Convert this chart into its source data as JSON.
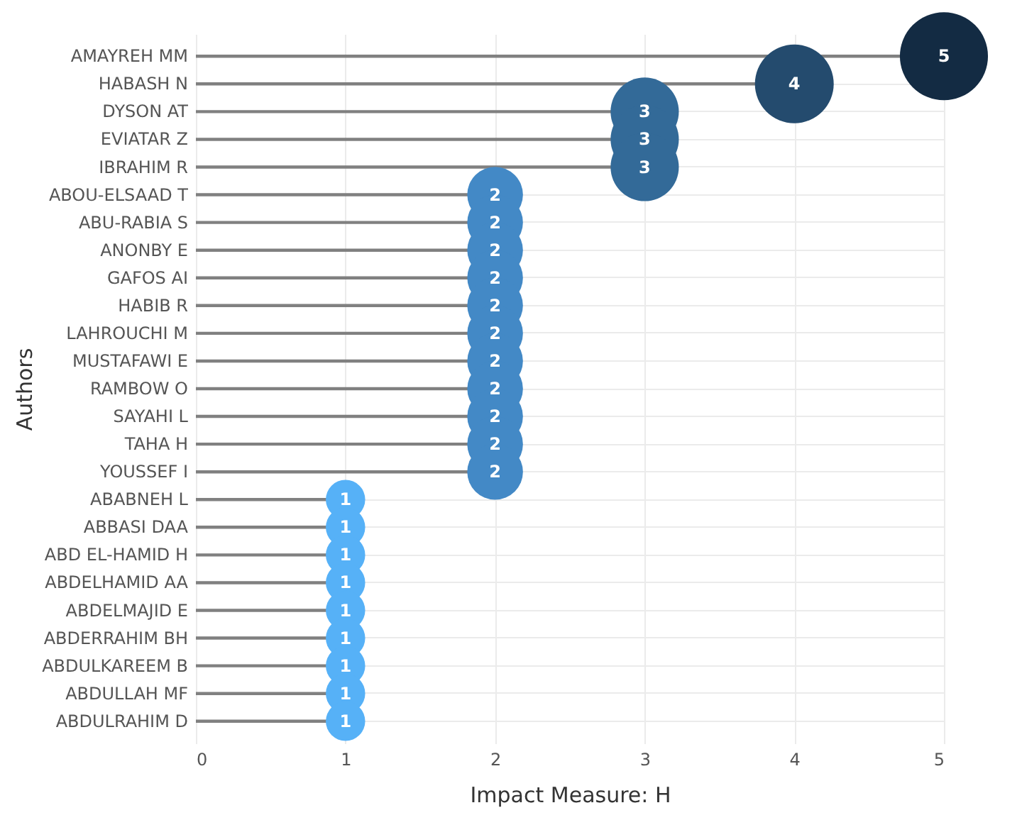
{
  "chart_data": {
    "type": "lollipop",
    "orientation": "horizontal",
    "xlabel": "Impact Measure: H",
    "ylabel": "Authors",
    "categories": [
      "AMAYREH MM",
      "HABASH N",
      "DYSON AT",
      "EVIATAR Z",
      "IBRAHIM R",
      "ABOU-ELSAAD T",
      "ABU-RABIA S",
      "ANONBY E",
      "GAFOS AI",
      "HABIB R",
      "LAHROUCHI M",
      "MUSTAFAWI E",
      "RAMBOW O",
      "SAYAHI L",
      "TAHA H",
      "YOUSSEF I",
      "ABABNEH L",
      "ABBASI DAA",
      "ABD EL-HAMID H",
      "ABDELHAMID AA",
      "ABDELMAJID E",
      "ABDERRAHIM BH",
      "ABDULKAREEM B",
      "ABDULLAH MF",
      "ABDULRAHIM D"
    ],
    "values": [
      5,
      4,
      3,
      3,
      3,
      2,
      2,
      2,
      2,
      2,
      2,
      2,
      2,
      2,
      2,
      2,
      1,
      1,
      1,
      1,
      1,
      1,
      1,
      1,
      1
    ],
    "colors": [
      "#132b43",
      "#244b6e",
      "#336a98",
      "#336a98",
      "#336a98",
      "#4389c6",
      "#4389c6",
      "#4389c6",
      "#4389c6",
      "#4389c6",
      "#4389c6",
      "#4389c6",
      "#4389c6",
      "#4389c6",
      "#4389c6",
      "#4389c6",
      "#56b1f7",
      "#56b1f7",
      "#56b1f7",
      "#56b1f7",
      "#56b1f7",
      "#56b1f7",
      "#56b1f7",
      "#56b1f7",
      "#56b1f7"
    ],
    "sizes": [
      1,
      0.8,
      0.6,
      0.6,
      0.6,
      0.4,
      0.4,
      0.4,
      0.4,
      0.4,
      0.4,
      0.4,
      0.4,
      0.4,
      0.4,
      0.4,
      0.2,
      0.2,
      0.2,
      0.2,
      0.2,
      0.2,
      0.2,
      0.2,
      0.2
    ],
    "xlim": [
      0,
      5
    ],
    "xticks": [
      0,
      1,
      2,
      3,
      4,
      5
    ],
    "grid": true,
    "data_labels": true
  }
}
